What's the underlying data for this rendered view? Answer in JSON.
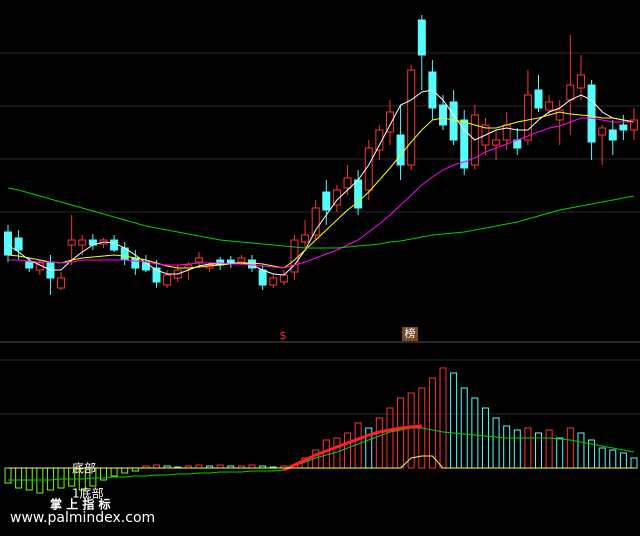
{
  "chart_data": [
    {
      "type": "candlestick",
      "ylim": [
        0,
        340
      ],
      "up_color": "#ff3232",
      "down_color": "#54fcfc",
      "open": [
        108,
        102,
        78,
        70,
        78,
        52,
        95,
        95,
        100,
        96,
        100,
        92,
        82,
        78,
        72,
        55,
        62,
        72,
        78,
        72,
        80,
        80,
        78,
        80,
        70,
        55,
        58,
        68,
        98,
        105,
        148,
        135,
        152,
        160,
        150,
        190,
        208,
        205,
        175,
        320,
        268,
        235,
        238,
        220,
        175,
        195,
        195,
        200,
        200,
        200,
        250,
        230,
        220,
        240,
        252,
        255,
        205,
        210,
        215,
        210
      ],
      "high": [
        115,
        110,
        82,
        80,
        85,
        68,
        125,
        105,
        106,
        102,
        105,
        98,
        90,
        85,
        80,
        70,
        75,
        78,
        88,
        78,
        83,
        84,
        85,
        85,
        75,
        65,
        70,
        105,
        120,
        140,
        160,
        155,
        175,
        170,
        200,
        215,
        240,
        235,
        275,
        325,
        280,
        245,
        250,
        230,
        235,
        222,
        210,
        228,
        212,
        270,
        265,
        245,
        240,
        305,
        285,
        260,
        215,
        220,
        225,
        232
      ],
      "low": [
        78,
        80,
        68,
        65,
        45,
        50,
        75,
        85,
        90,
        92,
        88,
        75,
        65,
        68,
        52,
        52,
        58,
        60,
        72,
        68,
        70,
        72,
        75,
        68,
        50,
        52,
        55,
        60,
        92,
        100,
        115,
        128,
        145,
        125,
        140,
        180,
        195,
        160,
        170,
        250,
        220,
        210,
        195,
        165,
        170,
        185,
        180,
        190,
        185,
        195,
        228,
        225,
        195,
        205,
        240,
        180,
        175,
        185,
        200,
        200
      ],
      "close": [
        85,
        90,
        72,
        77,
        62,
        62,
        100,
        100,
        95,
        100,
        90,
        80,
        72,
        70,
        58,
        65,
        70,
        75,
        82,
        75,
        75,
        76,
        82,
        72,
        55,
        62,
        65,
        100,
        105,
        132,
        130,
        150,
        162,
        132,
        192,
        210,
        228,
        175,
        270,
        285,
        232,
        215,
        200,
        172,
        225,
        215,
        200,
        215,
        192,
        245,
        232,
        238,
        230,
        255,
        265,
        198,
        212,
        200,
        210,
        220
      ],
      "series": [
        {
          "color": "#ffffff",
          "values": [
            95,
            88,
            80,
            75,
            70,
            70,
            80,
            88,
            95,
            98,
            97,
            92,
            85,
            77,
            70,
            66,
            66,
            70,
            74,
            76,
            76,
            77,
            77,
            75,
            70,
            66,
            65,
            75,
            90,
            110,
            125,
            140,
            150,
            160,
            175,
            195,
            215,
            235,
            240,
            248,
            250,
            240,
            225,
            210,
            200,
            205,
            210,
            212,
            210,
            210,
            220,
            228,
            232,
            240,
            245,
            240,
            228,
            222,
            220,
            218
          ]
        },
        {
          "color": "#ffff00",
          "values": [
            85,
            84,
            82,
            80,
            78,
            77,
            80,
            82,
            83,
            84,
            85,
            84,
            82,
            80,
            77,
            74,
            72,
            72,
            73,
            74,
            75,
            76,
            77,
            77,
            76,
            74,
            72,
            80,
            90,
            100,
            110,
            120,
            130,
            138,
            148,
            160,
            172,
            185,
            198,
            210,
            220,
            222,
            220,
            218,
            215,
            212,
            212,
            215,
            218,
            220,
            222,
            225,
            228,
            226,
            225,
            224,
            222,
            222,
            220,
            218
          ]
        },
        {
          "color": "#ff00ff",
          "values": [
            80,
            80,
            79,
            78,
            78,
            77,
            78,
            80,
            80,
            80,
            80,
            80,
            79,
            78,
            76,
            75,
            75,
            76,
            77,
            77,
            77,
            76,
            76,
            75,
            74,
            73,
            72,
            75,
            78,
            82,
            86,
            90,
            95,
            100,
            108,
            116,
            125,
            135,
            145,
            155,
            163,
            170,
            175,
            178,
            182,
            188,
            192,
            196,
            200,
            204,
            208,
            212,
            214,
            218,
            222,
            222,
            220,
            218,
            218,
            218
          ]
        },
        {
          "color": "#00d000",
          "values": [
            152,
            150,
            147,
            144,
            141,
            138,
            135,
            132,
            129,
            126,
            123,
            120,
            117,
            114,
            112,
            110,
            108,
            106,
            104,
            102,
            100,
            99,
            98,
            97,
            96,
            95,
            94,
            93,
            92,
            92,
            92,
            92,
            93,
            94,
            95,
            96,
            98,
            99,
            101,
            103,
            105,
            106,
            107,
            108,
            110,
            112,
            114,
            116,
            118,
            121,
            124,
            127,
            130,
            132,
            134,
            136,
            138,
            140,
            142,
            144
          ]
        }
      ]
    },
    {
      "type": "bar",
      "ylim": [
        -68,
        126
      ],
      "up_color": "#ff3232",
      "fall_color": "#54fcfc",
      "neg_color": "#7cfc00",
      "values": [
        -15,
        -20,
        -22,
        -25,
        -22,
        -20,
        -18,
        -22,
        -18,
        -12,
        -8,
        -5,
        -3,
        2,
        3,
        2,
        1,
        2,
        3,
        2,
        3,
        2,
        2,
        3,
        2,
        1,
        2,
        3,
        10,
        18,
        28,
        30,
        35,
        45,
        40,
        50,
        60,
        70,
        75,
        80,
        90,
        100,
        95,
        80,
        70,
        60,
        50,
        42,
        38,
        40,
        35,
        38,
        30,
        40,
        35,
        28,
        20,
        18,
        15,
        10
      ],
      "series": [
        {
          "color": "#00d000",
          "values": [
            -12,
            -12,
            -12,
            -12,
            -12,
            -11,
            -11,
            -11,
            -10,
            -10,
            -9,
            -9,
            -8,
            -8,
            -7,
            -7,
            -6,
            -6,
            -5,
            -5,
            -4,
            -4,
            -4,
            -3,
            -3,
            -3,
            -2,
            2,
            6,
            10,
            13,
            16,
            20,
            24,
            28,
            32,
            36,
            38,
            40,
            40,
            38,
            36,
            35,
            34,
            33,
            32,
            31,
            30,
            30,
            30,
            30,
            30,
            29,
            28,
            26,
            24,
            22,
            20,
            18,
            16
          ]
        },
        {
          "color": "#ff2020",
          "values": [
            null,
            null,
            null,
            null,
            null,
            null,
            null,
            null,
            null,
            null,
            null,
            null,
            null,
            null,
            null,
            null,
            null,
            null,
            null,
            null,
            null,
            null,
            null,
            null,
            null,
            null,
            -2,
            3,
            8,
            13,
            17,
            21,
            25,
            29,
            33,
            36,
            38,
            40,
            41,
            42,
            null,
            null,
            null,
            null,
            null,
            null,
            null,
            null,
            null,
            null,
            null,
            null,
            null,
            null,
            null,
            null,
            null,
            null,
            null,
            null
          ]
        },
        {
          "color": "#ffff40",
          "values": [
            0,
            0,
            0,
            0,
            0,
            0,
            0,
            0,
            0,
            0,
            0,
            0,
            0,
            0,
            0,
            0,
            0,
            0,
            0,
            0,
            0,
            0,
            0,
            0,
            0,
            0,
            0,
            0,
            0,
            0,
            0,
            0,
            0,
            0,
            0,
            0,
            0,
            0,
            10,
            12,
            12,
            0,
            0,
            0,
            0,
            0,
            0,
            0,
            0,
            0,
            0,
            0,
            0,
            0,
            0,
            0,
            0,
            0,
            0,
            0
          ]
        }
      ]
    }
  ],
  "annotations": {
    "signal_1": "$",
    "signal_2": "榜",
    "bottom_1": "底部",
    "bottom_2": "1底部",
    "brand": "掌 上 指 标",
    "url": "www.palmindex.com"
  }
}
